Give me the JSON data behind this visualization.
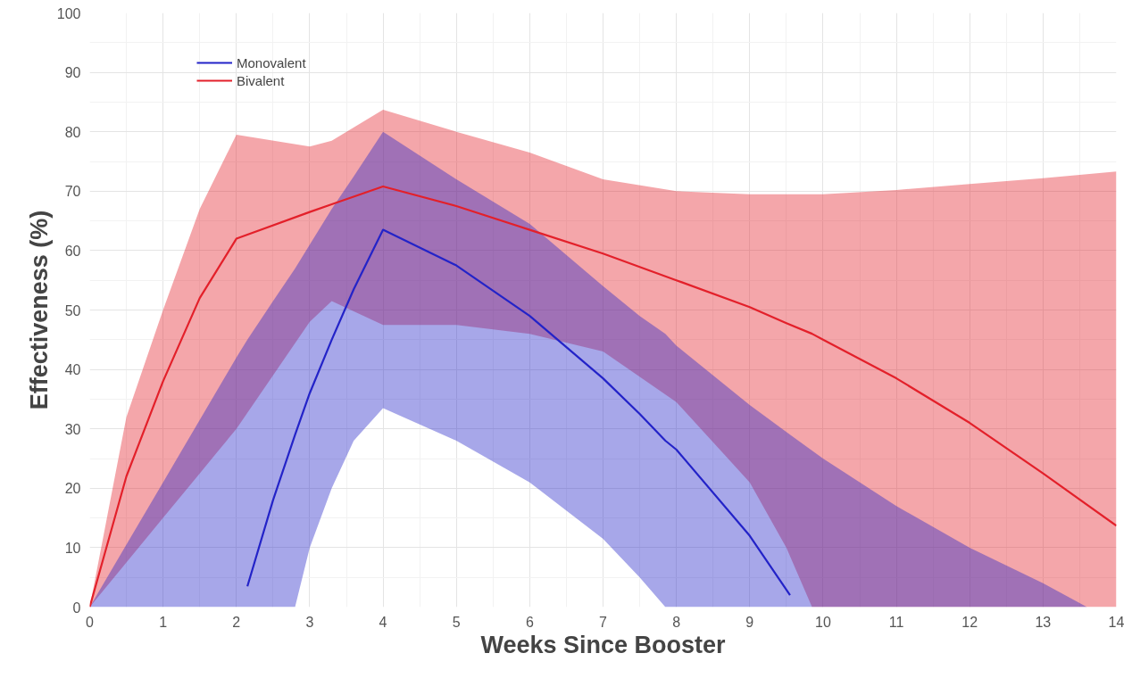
{
  "chart_data": {
    "type": "line",
    "xlabel": "Weeks Since Booster",
    "ylabel": "Effectiveness (%)",
    "xlim": [
      0,
      14
    ],
    "ylim": [
      0,
      100
    ],
    "xticks": [
      0,
      1,
      2,
      3,
      4,
      5,
      6,
      7,
      8,
      9,
      10,
      11,
      12,
      13,
      14
    ],
    "yticks": [
      0,
      10,
      20,
      30,
      40,
      50,
      60,
      70,
      80,
      90,
      100
    ],
    "grid": true,
    "legend": "top left",
    "series": [
      {
        "name": "Monovalent",
        "color": "#2323c8",
        "x": [
          0,
          0.5,
          1,
          1.5,
          2,
          2.15,
          2.5,
          2.8,
          3,
          3.3,
          3.6,
          4,
          5,
          6,
          7,
          7.5,
          7.85,
          8,
          9,
          9.55,
          10,
          11,
          12,
          13,
          13.6
        ],
        "values": [
          null,
          null,
          null,
          null,
          null,
          3.5,
          18,
          29,
          36,
          45,
          53.5,
          63.5,
          57.5,
          49,
          38.5,
          32.5,
          28,
          26.5,
          12,
          2,
          null,
          null,
          null,
          null,
          null
        ],
        "upper": [
          0,
          10.5,
          21,
          31.5,
          42,
          45,
          51.5,
          57,
          61,
          67,
          72.5,
          80,
          72,
          64.5,
          54,
          49,
          46,
          44,
          34,
          29,
          25,
          17,
          10,
          4,
          0
        ],
        "lower": [
          0,
          0,
          0,
          0,
          0,
          0,
          0,
          0,
          10,
          20,
          28,
          33.5,
          28,
          21,
          11.5,
          5,
          0,
          0,
          0,
          0,
          0,
          0,
          0,
          0,
          0
        ]
      },
      {
        "name": "Bivalent",
        "color": "#e3202a",
        "x": [
          0,
          0.5,
          1,
          1.5,
          2,
          3,
          3.3,
          4,
          5,
          6,
          7,
          8,
          9,
          9.5,
          9.85,
          10,
          11,
          12,
          13,
          14
        ],
        "values": [
          0,
          22,
          38,
          52,
          62,
          66.5,
          67.8,
          70.8,
          67.5,
          63.5,
          59.5,
          55,
          50.5,
          47.8,
          46,
          45,
          38.5,
          31,
          22.5,
          13.7
        ],
        "upper": [
          0,
          32,
          50,
          67,
          79.5,
          77.5,
          78.5,
          83.7,
          80,
          76.5,
          72,
          70,
          69.5,
          69.5,
          69.5,
          69.5,
          70.2,
          71.2,
          72.2,
          73.3
        ],
        "lower": [
          0,
          7.5,
          15,
          22.5,
          30,
          48,
          51.5,
          47.5,
          47.5,
          46,
          43,
          34.5,
          21,
          10,
          0,
          0,
          0,
          0,
          0,
          0
        ]
      }
    ]
  }
}
